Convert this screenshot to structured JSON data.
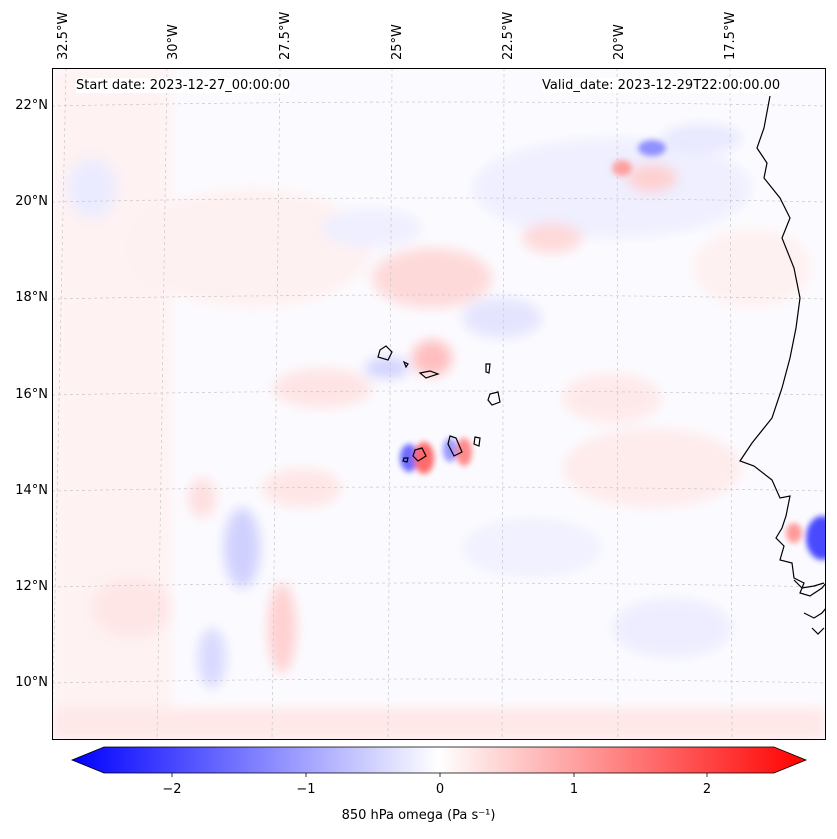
{
  "map": {
    "start_date": "Start date: 2023-12-27_00:00:00",
    "valid_date": "Valid_date: 2023-12-29T22:00:00.00",
    "field": "850 hPa omega (Pa s$^{-1}$)",
    "lon_labels": [
      "32.5°W",
      "30°W",
      "27.5°W",
      "25°W",
      "22.5°W",
      "20°W",
      "17.5°W"
    ],
    "lat_labels": [
      "22°N",
      "20°N",
      "18°N",
      "16°N",
      "14°N",
      "12°N",
      "10°N"
    ],
    "extent": {
      "lon": [
        -32.6,
        -15.6
      ],
      "lat": [
        8.8,
        22.8
      ]
    },
    "colors": {
      "negative": "#0000ff",
      "zero": "#ffffff",
      "positive": "#ff0000",
      "coast": "#000000",
      "grid": "#bbbbbb"
    }
  },
  "colorbar": {
    "label_text": "850 hPa omega (Pa s⁻¹)",
    "ticks": [
      "−2",
      "−1",
      "0",
      "1",
      "2"
    ],
    "range": [
      -2.7,
      2.7
    ],
    "extend": "both"
  }
}
